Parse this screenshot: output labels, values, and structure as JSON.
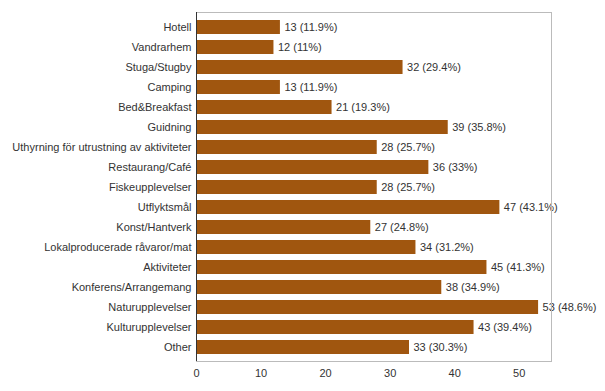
{
  "chart_data": {
    "type": "bar",
    "orientation": "horizontal",
    "categories": [
      "Hotell",
      "Vandrarhem",
      "Stuga/Stugby",
      "Camping",
      "Bed&Breakfast",
      "Guidning",
      "Uthyrning för utrustning av aktiviteter",
      "Restaurang/Café",
      "Fiskeupplevelser",
      "Utflyktsmål",
      "Konst/Hantverk",
      "Lokalproducerade råvaror/mat",
      "Aktiviteter",
      "Konferens/Arrangemang",
      "Naturupplevelser",
      "Kulturupplevelser",
      "Other"
    ],
    "values": [
      13,
      12,
      32,
      13,
      21,
      39,
      28,
      36,
      28,
      47,
      27,
      34,
      45,
      38,
      53,
      43,
      33
    ],
    "value_labels": [
      "13 (11.9%)",
      "12 (11%)",
      "32 (29.4%)",
      "13 (11.9%)",
      "21 (19.3%)",
      "39 (35.8%)",
      "28 (25.7%)",
      "36 (33%)",
      "28 (25.7%)",
      "47 (43.1%)",
      "27 (24.8%)",
      "34 (31.2%)",
      "45 (41.3%)",
      "38 (34.9%)",
      "53 (48.6%)",
      "43 (39.4%)",
      "33 (30.3%)"
    ],
    "color": "#a0560f",
    "xlim": [
      0,
      55
    ],
    "xticks": [
      0,
      10,
      20,
      30,
      40,
      50
    ],
    "grid": false,
    "data_labels": true
  }
}
